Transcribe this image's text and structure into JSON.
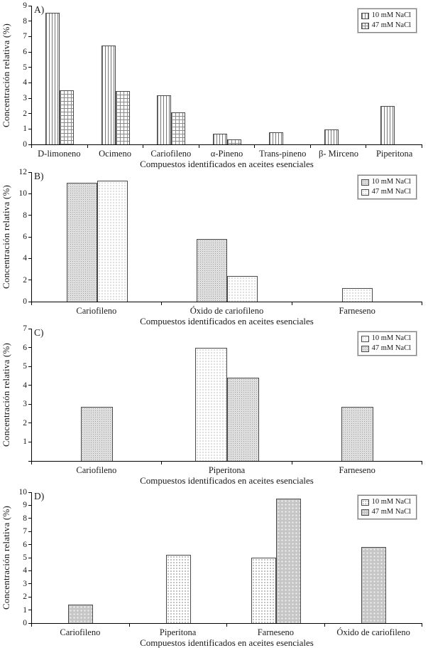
{
  "figure_title": "",
  "legend_labels": [
    "10 mM NaCl",
    "47 mM NaCl"
  ],
  "chart_data": [
    {
      "type": "bar",
      "panel_label": "A)",
      "ylabel": "Concentración relativa (%)",
      "xlabel": "Compuestos identificados en aceites esenciales",
      "ylim": [
        0,
        9
      ],
      "ytick_step": 1,
      "hide_zero_tick": false,
      "keep_zero_slots": true,
      "grid": false,
      "legend_position": "top-right",
      "categories": [
        "D-limoneno",
        "Ocimeno",
        "Cariofileno",
        "α-Pineno",
        "Trans-pineno",
        "β- Mirceno",
        "Piperitona"
      ],
      "series": [
        {
          "name": "10 mM NaCl",
          "pattern": "vlines",
          "values": [
            8.55,
            6.4,
            3.2,
            0.7,
            0.8,
            0.95,
            2.5
          ]
        },
        {
          "name": "47 mM NaCl",
          "pattern": "grid",
          "values": [
            3.5,
            3.45,
            2.1,
            0.33,
            0,
            0,
            0
          ]
        }
      ]
    },
    {
      "type": "bar",
      "panel_label": "B)",
      "ylabel": "Concentración relativa (%)",
      "xlabel": "Compuestos identificados en aceites esenciales",
      "ylim": [
        0,
        12
      ],
      "ytick_step": 2,
      "hide_zero_tick": false,
      "keep_zero_slots": false,
      "grid": false,
      "legend_position": "top-right",
      "categories": [
        "Cariofileno",
        "Óxido de cariofileno",
        "Farneseno"
      ],
      "series": [
        {
          "name": "10 mM NaCl",
          "pattern": "checker",
          "values": [
            11.0,
            5.8,
            0
          ]
        },
        {
          "name": "47 mM NaCl",
          "pattern": "dotslight",
          "values": [
            11.2,
            2.4,
            1.25
          ]
        }
      ]
    },
    {
      "type": "bar",
      "panel_label": "C)",
      "ylabel": "Concentración relativa (%)",
      "xlabel": "Compuestos identificados en aceites esenciales",
      "ylim": [
        0,
        7
      ],
      "ytick_step": 1,
      "hide_zero_tick": true,
      "keep_zero_slots": false,
      "grid": false,
      "legend_position": "top-right",
      "categories": [
        "Cariofileno",
        "Piperitona",
        "Farneseno"
      ],
      "series": [
        {
          "name": "10 mM NaCl",
          "pattern": "dotslight",
          "values": [
            0,
            6.0,
            0
          ]
        },
        {
          "name": "47 mM NaCl",
          "pattern": "checker",
          "values": [
            2.85,
            4.4,
            2.85
          ]
        }
      ]
    },
    {
      "type": "bar",
      "panel_label": "D)",
      "ylabel": "Concentración relativa (%)",
      "xlabel": "Compuestos identificados en aceites esenciales",
      "ylim": [
        0,
        10
      ],
      "ytick_step": 1,
      "hide_zero_tick": false,
      "keep_zero_slots": false,
      "grid": false,
      "legend_position": "top-right",
      "categories": [
        "Cariofileno",
        "Piperitona",
        "Farneseno",
        "Óxido de cariofileno"
      ],
      "series": [
        {
          "name": "10 mM NaCl",
          "pattern": "dotsdark",
          "values": [
            0,
            5.2,
            5.0,
            0
          ]
        },
        {
          "name": "47 mM NaCl",
          "pattern": "graydots",
          "values": [
            1.4,
            0,
            9.5,
            5.8
          ]
        }
      ]
    }
  ]
}
